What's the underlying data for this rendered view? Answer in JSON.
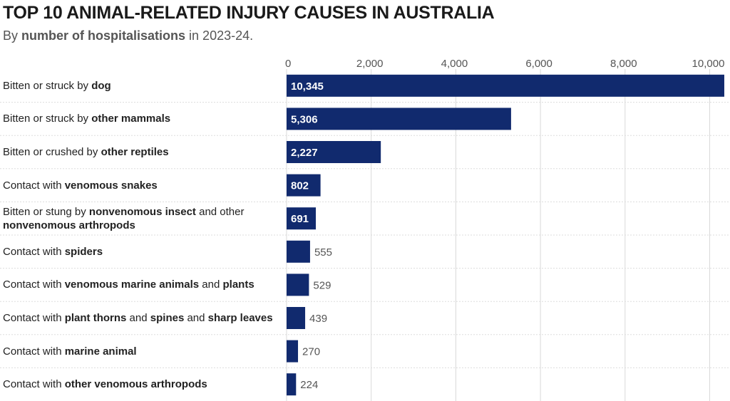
{
  "title": "TOP 10 ANIMAL-RELATED INJURY CAUSES IN AUSTRALIA",
  "subtitle": {
    "prefix": "By ",
    "bold": "number of hospitalisations",
    "suffix": " in 2023-24."
  },
  "colors": {
    "bar": "#112a6e",
    "grid": "#d9d9d9",
    "separator": "#dddddd",
    "outside_label": "#555555",
    "inside_label": "#ffffff"
  },
  "chart_data": {
    "type": "bar",
    "orientation": "horizontal",
    "title": "TOP 10 ANIMAL-RELATED INJURY CAUSES IN AUSTRALIA",
    "xlabel": "",
    "ylabel": "",
    "xlim": [
      0,
      10400
    ],
    "x_ticks": [
      "0",
      "2,000",
      "4,000",
      "6,000",
      "8,000",
      "10,000"
    ],
    "x_tick_values": [
      0,
      2000,
      4000,
      6000,
      8000,
      10000
    ],
    "grid": true,
    "categories": [
      [
        {
          "t": "Bitten or struck by "
        },
        {
          "t": "dog",
          "b": true
        }
      ],
      [
        {
          "t": "Bitten or struck by "
        },
        {
          "t": "other mammals",
          "b": true
        }
      ],
      [
        {
          "t": "Bitten or crushed by "
        },
        {
          "t": "other reptiles",
          "b": true
        }
      ],
      [
        {
          "t": "Contact with "
        },
        {
          "t": "venomous snakes",
          "b": true
        }
      ],
      [
        {
          "t": "Bitten or stung by "
        },
        {
          "t": "nonvenomous insect",
          "b": true
        },
        {
          "t": " and other "
        },
        {
          "t": "nonvenomous arthropods",
          "b": true
        }
      ],
      [
        {
          "t": "Contact with "
        },
        {
          "t": "spiders",
          "b": true
        }
      ],
      [
        {
          "t": "Contact with "
        },
        {
          "t": "venomous marine animals",
          "b": true
        },
        {
          "t": " and "
        },
        {
          "t": "plants",
          "b": true
        }
      ],
      [
        {
          "t": "Contact with "
        },
        {
          "t": "plant thorns",
          "b": true
        },
        {
          "t": " and "
        },
        {
          "t": "spines",
          "b": true
        },
        {
          "t": " and "
        },
        {
          "t": "sharp leaves",
          "b": true
        }
      ],
      [
        {
          "t": "Contact with "
        },
        {
          "t": "marine animal",
          "b": true
        }
      ],
      [
        {
          "t": "Contact with "
        },
        {
          "t": "other venomous arthropods",
          "b": true
        }
      ]
    ],
    "values": [
      10345,
      5306,
      2227,
      802,
      691,
      555,
      529,
      439,
      270,
      224
    ],
    "value_labels": [
      "10,345",
      "5,306",
      "2,227",
      "802",
      "691",
      "555",
      "529",
      "439",
      "270",
      "224"
    ]
  }
}
